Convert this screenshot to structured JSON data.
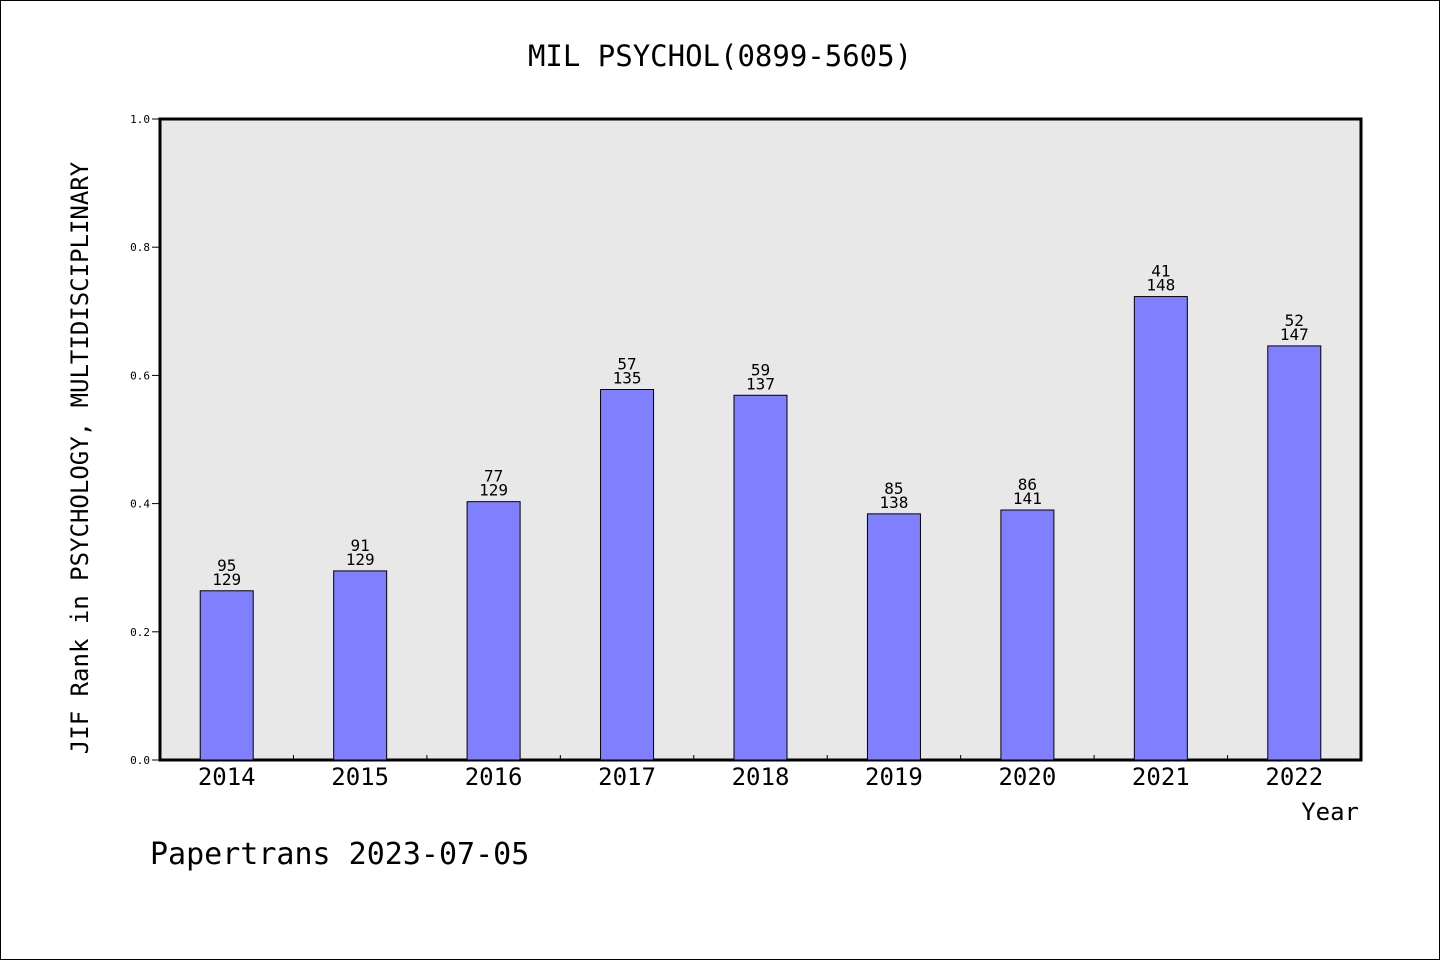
{
  "chart_data": {
    "type": "bar",
    "title": "MIL PSYCHOL(0899-5605)",
    "xlabel": "Year",
    "ylabel": "JIF Rank in PSYCHOLOGY, MULTIDISCIPLINARY",
    "footer": "Papertrans 2023-07-05",
    "categories": [
      "2014",
      "2015",
      "2016",
      "2017",
      "2018",
      "2019",
      "2020",
      "2021",
      "2022"
    ],
    "values": [
      0.264,
      0.295,
      0.403,
      0.578,
      0.569,
      0.384,
      0.39,
      0.723,
      0.646
    ],
    "rank_labels": [
      "95",
      "91",
      "77",
      "57",
      "59",
      "85",
      "86",
      "41",
      "52"
    ],
    "total_labels": [
      "129",
      "129",
      "129",
      "135",
      "137",
      "138",
      "141",
      "148",
      "147"
    ],
    "ylim": [
      0,
      1.0
    ],
    "yticks": [
      "0.0",
      "0.2",
      "0.4",
      "0.6",
      "0.8",
      "1.0"
    ],
    "grid": false,
    "colors": {
      "bar": "#8080ff",
      "plot_bg": "#e8e8e8"
    }
  }
}
